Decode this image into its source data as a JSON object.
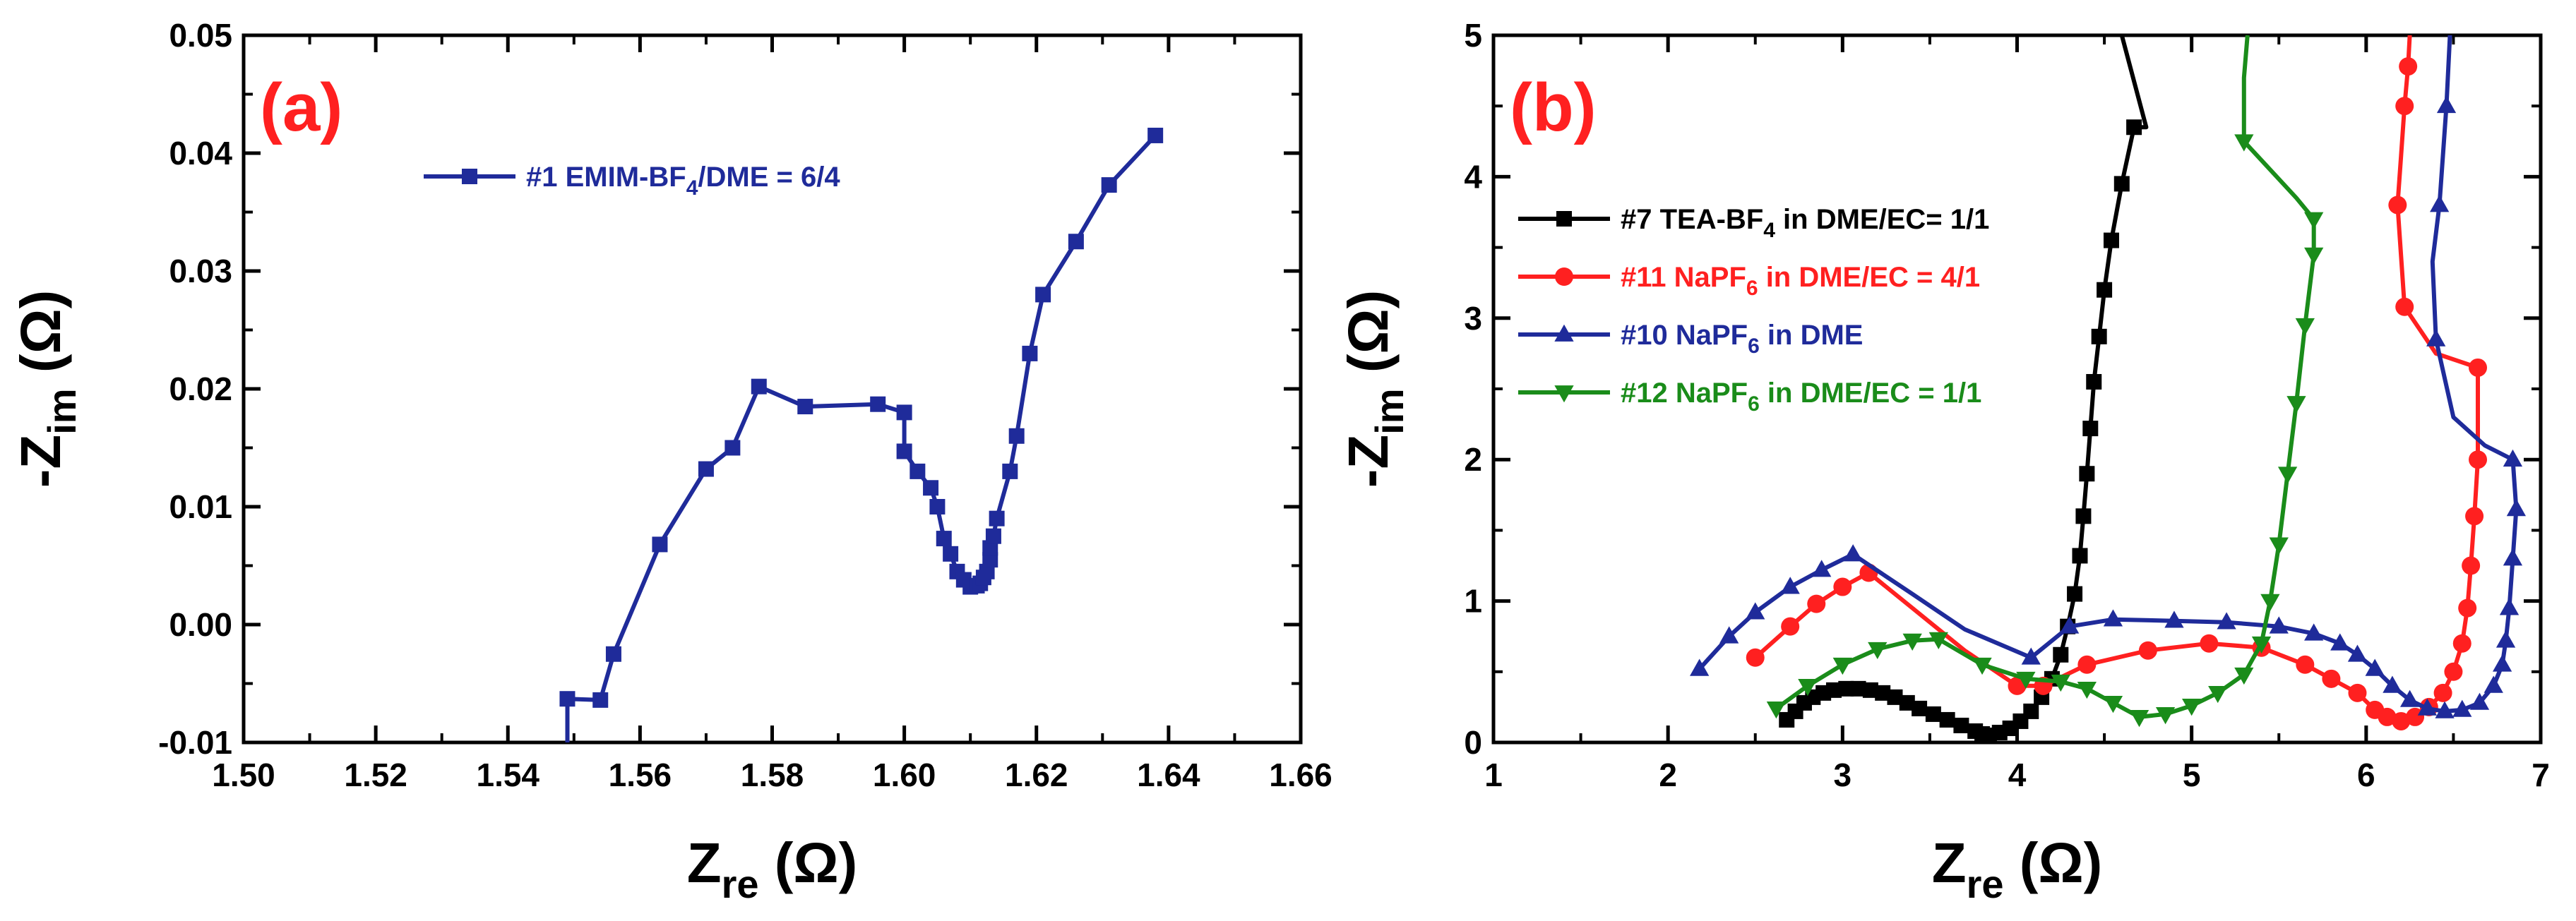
{
  "chart_data": [
    {
      "panel_label": "(a)",
      "type": "line",
      "xlabel": {
        "main": "Z",
        "sub": "re",
        "unit": " (Ω)"
      },
      "ylabel": {
        "prefix": "-Z",
        "sub": "im",
        "unit": " (Ω)"
      },
      "xlim": [
        1.5,
        1.66
      ],
      "ylim": [
        -0.01,
        0.05
      ],
      "xticks": [
        "1.50",
        "1.52",
        "1.54",
        "1.56",
        "1.58",
        "1.60",
        "1.62",
        "1.64",
        "1.66"
      ],
      "yticks": [
        "-0.01",
        "0.00",
        "0.01",
        "0.02",
        "0.03",
        "0.04",
        "0.05"
      ],
      "legend_position": "top-left",
      "series": [
        {
          "name_parts": [
            "#1 EMIM-BF",
            "4",
            "/DME = 6/4"
          ],
          "color": "#1f2b9a",
          "marker": "square",
          "x": [
            1.549,
            1.549,
            1.554,
            1.556,
            1.563,
            1.57,
            1.574,
            1.578,
            1.585,
            1.596,
            1.6,
            1.6,
            1.602,
            1.604,
            1.605,
            1.606,
            1.607,
            1.608,
            1.609,
            1.61,
            1.611,
            1.6115,
            1.612,
            1.6125,
            1.613,
            1.613,
            1.6135,
            1.614,
            1.616,
            1.617,
            1.619,
            1.621,
            1.626,
            1.631,
            1.638
          ],
          "y": [
            -0.0115,
            -0.0063,
            -0.0064,
            -0.0025,
            0.0068,
            0.0132,
            0.015,
            0.0202,
            0.0185,
            0.0187,
            0.018,
            0.0147,
            0.013,
            0.0116,
            0.01,
            0.0073,
            0.006,
            0.0045,
            0.0038,
            0.0032,
            0.0033,
            0.0035,
            0.004,
            0.0045,
            0.0055,
            0.0065,
            0.0075,
            0.009,
            0.013,
            0.016,
            0.023,
            0.028,
            0.0325,
            0.0373,
            0.0415
          ]
        }
      ]
    },
    {
      "panel_label": "(b)",
      "type": "line",
      "xlabel": {
        "main": "Z",
        "sub": "re",
        "unit": " (Ω)"
      },
      "ylabel": {
        "prefix": "-Z",
        "sub": "im",
        "unit": " (Ω)"
      },
      "xlim": [
        1,
        7
      ],
      "ylim": [
        0,
        5
      ],
      "xticks": [
        "1",
        "2",
        "3",
        "4",
        "5",
        "6",
        "7"
      ],
      "yticks": [
        "0",
        "1",
        "2",
        "3",
        "4",
        "5"
      ],
      "legend_position": "center-left",
      "series": [
        {
          "name_parts": [
            "#7 TEA-BF",
            "4",
            " in DME/EC= 1/1"
          ],
          "color": "#000000",
          "marker": "square",
          "x": [
            2.68,
            2.73,
            2.78,
            2.83,
            2.89,
            2.95,
            3.02,
            3.09,
            3.16,
            3.23,
            3.3,
            3.37,
            3.44,
            3.52,
            3.6,
            3.68,
            3.76,
            3.8,
            3.84,
            3.9,
            3.96,
            4.02,
            4.08,
            4.14,
            4.2,
            4.25,
            4.29,
            4.33,
            4.36,
            4.38,
            4.4,
            4.42,
            4.44,
            4.47,
            4.5,
            4.54,
            4.6,
            4.67,
            4.74,
            4.6,
            4.55
          ],
          "y": [
            0.16,
            0.22,
            0.28,
            0.32,
            0.35,
            0.37,
            0.38,
            0.38,
            0.37,
            0.35,
            0.32,
            0.28,
            0.24,
            0.2,
            0.16,
            0.12,
            0.08,
            0.06,
            0.05,
            0.07,
            0.1,
            0.15,
            0.22,
            0.32,
            0.45,
            0.62,
            0.82,
            1.05,
            1.32,
            1.6,
            1.9,
            2.22,
            2.55,
            2.87,
            3.2,
            3.55,
            3.95,
            4.35,
            4.35,
            5.0,
            5.4
          ],
          "markers_on": [
            0,
            1,
            2,
            3,
            4,
            5,
            6,
            7,
            8,
            9,
            10,
            11,
            12,
            13,
            14,
            15,
            16,
            17,
            18,
            19,
            20,
            21,
            22,
            23,
            24,
            25,
            26,
            27,
            28,
            29,
            30,
            31,
            32,
            33,
            34,
            35,
            36,
            37
          ]
        },
        {
          "name_parts": [
            "#11 NaPF",
            "6",
            " in DME/EC = 4/1"
          ],
          "color": "#ff2020",
          "marker": "circle",
          "x": [
            2.5,
            2.7,
            2.85,
            3.0,
            3.15,
            3.4,
            3.7,
            4.0,
            4.15,
            4.4,
            4.75,
            5.1,
            5.4,
            5.65,
            5.8,
            5.95,
            6.05,
            6.12,
            6.2,
            6.28,
            6.36,
            6.44,
            6.5,
            6.55,
            6.58,
            6.6,
            6.62,
            6.64,
            6.64,
            6.4,
            6.22,
            6.18,
            6.2,
            6.22,
            6.24,
            6.25,
            6.28
          ],
          "y": [
            0.6,
            0.82,
            0.98,
            1.1,
            1.2,
            0.95,
            0.65,
            0.4,
            0.4,
            0.55,
            0.65,
            0.7,
            0.67,
            0.55,
            0.45,
            0.35,
            0.23,
            0.18,
            0.15,
            0.18,
            0.25,
            0.35,
            0.5,
            0.7,
            0.95,
            1.25,
            1.6,
            2.0,
            2.65,
            2.75,
            3.08,
            3.8,
            4.15,
            4.5,
            4.78,
            5.0,
            5.4
          ],
          "markers_on": [
            0,
            1,
            2,
            3,
            4,
            7,
            8,
            9,
            10,
            11,
            12,
            13,
            14,
            15,
            16,
            17,
            18,
            19,
            20,
            21,
            22,
            23,
            24,
            25,
            26,
            27,
            28,
            30,
            31,
            33,
            34
          ]
        },
        {
          "name_parts": [
            "#10 NaPF",
            "6",
            " in DME"
          ],
          "color": "#1f2b9a",
          "marker": "triangle-up",
          "x": [
            2.18,
            2.35,
            2.5,
            2.7,
            2.88,
            3.06,
            3.4,
            3.7,
            4.08,
            4.3,
            4.55,
            4.9,
            5.2,
            5.5,
            5.7,
            5.85,
            5.95,
            6.05,
            6.15,
            6.25,
            6.35,
            6.45,
            6.55,
            6.65,
            6.73,
            6.78,
            6.8,
            6.82,
            6.84,
            6.86,
            6.84,
            6.68,
            6.5,
            6.4,
            6.38,
            6.42,
            6.46,
            6.48,
            6.52
          ],
          "y": [
            0.52,
            0.75,
            0.92,
            1.1,
            1.22,
            1.33,
            1.05,
            0.8,
            0.6,
            0.82,
            0.87,
            0.86,
            0.85,
            0.82,
            0.77,
            0.7,
            0.62,
            0.52,
            0.4,
            0.3,
            0.24,
            0.22,
            0.23,
            0.28,
            0.4,
            0.55,
            0.72,
            0.95,
            1.3,
            1.65,
            2.0,
            2.1,
            2.3,
            2.85,
            3.4,
            3.8,
            4.5,
            5.0,
            5.4
          ],
          "markers_on": [
            0,
            1,
            2,
            3,
            4,
            5,
            8,
            9,
            10,
            11,
            12,
            13,
            14,
            15,
            16,
            17,
            18,
            19,
            20,
            21,
            22,
            23,
            24,
            25,
            26,
            27,
            28,
            29,
            30,
            33,
            35,
            36
          ]
        },
        {
          "name_parts": [
            "#12 NaPF",
            "6",
            " in DME/EC = 1/1"
          ],
          "color": "#1a8c1a",
          "marker": "triangle-down",
          "x": [
            2.62,
            2.8,
            3.0,
            3.2,
            3.4,
            3.55,
            3.8,
            4.05,
            4.25,
            4.4,
            4.55,
            4.7,
            4.85,
            5.0,
            5.15,
            5.3,
            5.4,
            5.45,
            5.5,
            5.55,
            5.6,
            5.65,
            5.7,
            5.7,
            5.6,
            5.3,
            5.3,
            5.32
          ],
          "y": [
            0.24,
            0.4,
            0.55,
            0.66,
            0.72,
            0.73,
            0.55,
            0.45,
            0.43,
            0.38,
            0.28,
            0.18,
            0.2,
            0.26,
            0.35,
            0.48,
            0.7,
            1.0,
            1.4,
            1.9,
            2.4,
            2.95,
            3.45,
            3.7,
            3.85,
            4.25,
            4.7,
            5.0
          ],
          "markers_on": [
            0,
            1,
            2,
            3,
            4,
            5,
            6,
            7,
            8,
            9,
            10,
            11,
            12,
            13,
            14,
            15,
            16,
            17,
            18,
            19,
            20,
            21,
            22,
            23,
            25
          ]
        }
      ]
    }
  ]
}
